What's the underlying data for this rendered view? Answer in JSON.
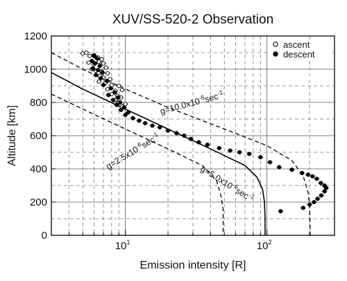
{
  "chart_data": {
    "type": "scatter",
    "title": "XUV/SS-520-2 Observation",
    "xlabel": "Emission intensity [R]",
    "ylabel": "Altitude [km]",
    "xscale": "log",
    "xlim": [
      3,
      300
    ],
    "ylim": [
      0,
      1200
    ],
    "x_ticks": [
      {
        "value": 10,
        "base": "10",
        "exp": "1"
      },
      {
        "value": 100,
        "base": "10",
        "exp": "2"
      }
    ],
    "y_ticks": [
      {
        "value": 0,
        "label": "0"
      },
      {
        "value": 200,
        "label": "200"
      },
      {
        "value": 400,
        "label": "400"
      },
      {
        "value": 600,
        "label": "600"
      },
      {
        "value": 800,
        "label": "800"
      },
      {
        "value": 1000,
        "label": "1000"
      },
      {
        "value": 1200,
        "label": "1200"
      }
    ],
    "grid": true,
    "legend": {
      "placement": "top-right",
      "entries": [
        {
          "label": "ascent",
          "marker": "open-circle"
        },
        {
          "label": "descent",
          "marker": "filled-circle"
        }
      ]
    },
    "series": [
      {
        "name": "ascent",
        "marker": "open-circle",
        "points": [
          [
            5.0,
            1095
          ],
          [
            5.3,
            1100
          ],
          [
            5.6,
            1080
          ],
          [
            6.0,
            1085
          ],
          [
            6.4,
            1070
          ],
          [
            6.8,
            1060
          ],
          [
            5.5,
            1040
          ],
          [
            6.0,
            1030
          ],
          [
            6.5,
            1045
          ],
          [
            7.0,
            1035
          ],
          [
            7.3,
            1010
          ],
          [
            5.8,
            1000
          ],
          [
            6.2,
            990
          ],
          [
            6.8,
            985
          ],
          [
            7.5,
            975
          ],
          [
            6.6,
            960
          ],
          [
            7.0,
            950
          ],
          [
            7.8,
            940
          ],
          [
            6.5,
            925
          ],
          [
            7.2,
            915
          ],
          [
            8.0,
            905
          ],
          [
            9.0,
            900
          ],
          [
            7.5,
            880
          ],
          [
            8.5,
            870
          ],
          [
            9.5,
            875
          ],
          [
            8.0,
            850
          ],
          [
            8.8,
            840
          ],
          [
            9.3,
            830
          ],
          [
            8.5,
            815
          ],
          [
            9.0,
            800
          ],
          [
            10.0,
            790
          ],
          [
            9.5,
            775
          ]
        ]
      },
      {
        "name": "descent",
        "marker": "filled-circle",
        "points": [
          [
            6.0,
            1080
          ],
          [
            6.3,
            1065
          ],
          [
            5.8,
            1050
          ],
          [
            6.1,
            1035
          ],
          [
            6.6,
            1020
          ],
          [
            5.9,
            1005
          ],
          [
            6.4,
            995
          ],
          [
            6.9,
            980
          ],
          [
            6.2,
            965
          ],
          [
            6.7,
            945
          ],
          [
            7.4,
            930
          ],
          [
            7.0,
            905
          ],
          [
            7.9,
            885
          ],
          [
            8.4,
            860
          ],
          [
            7.6,
            845
          ],
          [
            8.9,
            830
          ],
          [
            8.2,
            815
          ],
          [
            9.2,
            800
          ],
          [
            8.7,
            785
          ],
          [
            9.8,
            770
          ],
          [
            9.3,
            755
          ],
          [
            10.5,
            740
          ],
          [
            10.0,
            725
          ],
          [
            11.3,
            705
          ],
          [
            12.5,
            690
          ],
          [
            13.8,
            675
          ],
          [
            15.5,
            660
          ],
          [
            17.5,
            650
          ],
          [
            20.0,
            630
          ],
          [
            23.0,
            615
          ],
          [
            26.0,
            600
          ],
          [
            29.0,
            580
          ],
          [
            33.0,
            560
          ],
          [
            38.0,
            545
          ],
          [
            46.0,
            525
          ],
          [
            55.0,
            510
          ],
          [
            64.0,
            500
          ],
          [
            75.0,
            490
          ],
          [
            90.0,
            470
          ],
          [
            105.0,
            440
          ],
          [
            122.0,
            410
          ],
          [
            150.0,
            395
          ],
          [
            177.0,
            375
          ],
          [
            195.0,
            365
          ],
          [
            210.0,
            355
          ],
          [
            225.0,
            340
          ],
          [
            240.0,
            315
          ],
          [
            255.0,
            300
          ],
          [
            262.0,
            285
          ],
          [
            255.0,
            265
          ],
          [
            242.0,
            240
          ],
          [
            228.0,
            220
          ],
          [
            215.0,
            200
          ],
          [
            200.0,
            185
          ],
          [
            180.0,
            165
          ],
          [
            125.0,
            145
          ]
        ]
      }
    ],
    "model_curves": [
      {
        "label_parts": {
          "prefix": "g=10.0x10",
          "exp": "-6",
          "suffix": "sec",
          "suffix_exp": "-1"
        },
        "style": "dashed",
        "points": [
          [
            3,
            1100
          ],
          [
            5,
            1000
          ],
          [
            10,
            880
          ],
          [
            20,
            770
          ],
          [
            50,
            640
          ],
          [
            100,
            540
          ],
          [
            150,
            450
          ],
          [
            180,
            360
          ],
          [
            195,
            260
          ],
          [
            200,
            180
          ],
          [
            202,
            0
          ]
        ]
      },
      {
        "label_parts": {
          "prefix": "g=5.0x10",
          "exp": "-6",
          "suffix": "sec",
          "suffix_exp": "-1"
        },
        "style": "solid",
        "points": [
          [
            3,
            980
          ],
          [
            5,
            880
          ],
          [
            10,
            760
          ],
          [
            20,
            640
          ],
          [
            40,
            520
          ],
          [
            70,
            420
          ],
          [
            85,
            350
          ],
          [
            93,
            280
          ],
          [
            96,
            200
          ],
          [
            97,
            100
          ],
          [
            97,
            0
          ]
        ]
      },
      {
        "label_parts": {
          "prefix": "g=2.5x10",
          "exp": "-6",
          "suffix": "sec",
          "suffix_exp": "-1"
        },
        "style": "dashed",
        "points": [
          [
            3,
            850
          ],
          [
            5,
            760
          ],
          [
            10,
            640
          ],
          [
            20,
            520
          ],
          [
            35,
            420
          ],
          [
            44,
            330
          ],
          [
            47,
            250
          ],
          [
            49,
            160
          ],
          [
            49,
            0
          ]
        ]
      }
    ]
  }
}
